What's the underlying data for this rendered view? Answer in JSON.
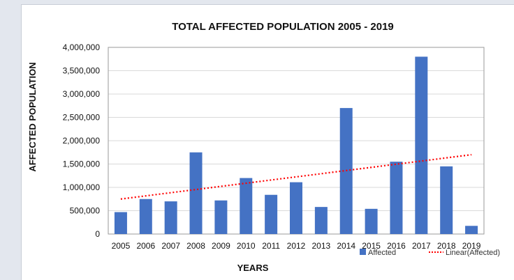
{
  "chart_data": {
    "type": "bar",
    "title": "TOTAL AFFECTED POPULATION 2005 - 2019",
    "xlabel": "YEARS",
    "ylabel": "AFFECTED POPULATION",
    "categories": [
      "2005",
      "2006",
      "2007",
      "2008",
      "2009",
      "2010",
      "2011",
      "2012",
      "2013",
      "2014",
      "2015",
      "2016",
      "2017",
      "2018",
      "2019"
    ],
    "series": [
      {
        "name": "Affected",
        "color": "#4472c4",
        "values": [
          470000,
          750000,
          700000,
          1750000,
          720000,
          1200000,
          840000,
          1110000,
          580000,
          2700000,
          540000,
          1550000,
          3800000,
          1450000,
          175000
        ]
      }
    ],
    "trendline": {
      "name": "Linear(Affected)",
      "color": "#ff0000",
      "style": "dotted",
      "start": 750000,
      "end": 1700000
    },
    "ylim": [
      0,
      4000000
    ],
    "yticks": [
      0,
      500000,
      1000000,
      1500000,
      2000000,
      2500000,
      3000000,
      3500000,
      4000000
    ],
    "ytick_labels": [
      "0",
      "500,000",
      "1,000,000",
      "1,500,000",
      "2,000,000",
      "2,500,000",
      "3,000,000",
      "3,500,000",
      "4,000,000"
    ],
    "grid": true,
    "legend": "bottom-right"
  }
}
